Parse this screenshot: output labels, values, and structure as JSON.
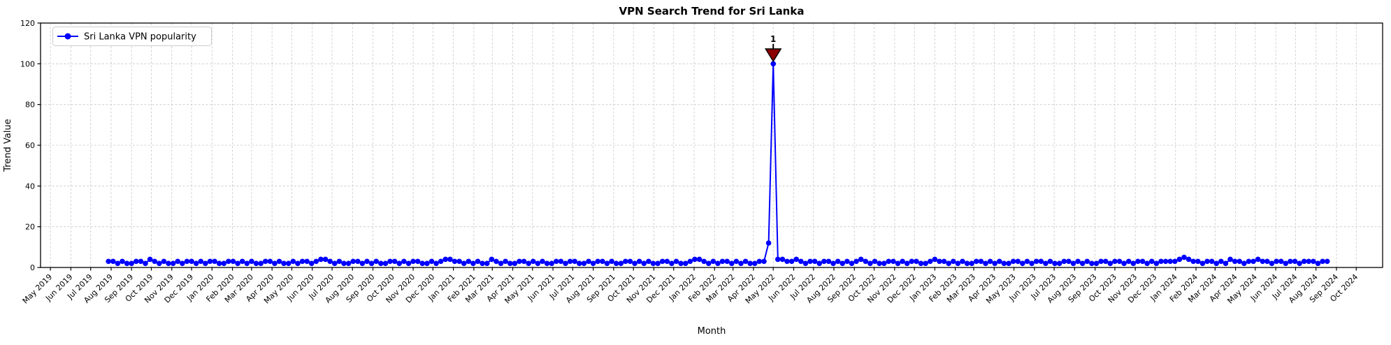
{
  "chart_data": {
    "type": "line",
    "title": "VPN Search Trend for Sri Lanka",
    "xlabel": "Month",
    "ylabel": "Trend Value",
    "ylim": [
      0,
      120
    ],
    "yticks": [
      0,
      20,
      40,
      60,
      80,
      100,
      120
    ],
    "grid": true,
    "grid_style": "dashed",
    "grid_color": "#c8c8c8",
    "line_color": "#0000ff",
    "marker": "circle",
    "legend": {
      "label": "Sri Lanka VPN popularity",
      "position": "upper left"
    },
    "annotation": {
      "text": "1",
      "color": "#8b0000",
      "date": "2022-05-01",
      "value": 100
    },
    "xlim": [
      "2019-04-16",
      "2024-11-10"
    ],
    "xtick_labels": [
      "May 2019",
      "Jun 2019",
      "Jul 2019",
      "Aug 2019",
      "Sep 2019",
      "Oct 2019",
      "Nov 2019",
      "Dec 2019",
      "Jan 2020",
      "Feb 2020",
      "Mar 2020",
      "Apr 2020",
      "May 2020",
      "Jun 2020",
      "Jul 2020",
      "Aug 2020",
      "Sep 2020",
      "Oct 2020",
      "Nov 2020",
      "Dec 2020",
      "Jan 2021",
      "Feb 2021",
      "Mar 2021",
      "Apr 2021",
      "May 2021",
      "Jun 2021",
      "Jul 2021",
      "Aug 2021",
      "Sep 2021",
      "Oct 2021",
      "Nov 2021",
      "Dec 2021",
      "Jan 2022",
      "Feb 2022",
      "Mar 2022",
      "Apr 2022",
      "May 2022",
      "Jun 2022",
      "Jul 2022",
      "Aug 2022",
      "Sep 2022",
      "Oct 2022",
      "Nov 2022",
      "Dec 2022",
      "Jan 2023",
      "Feb 2023",
      "Mar 2023",
      "Apr 2023",
      "May 2023",
      "Jun 2023",
      "Jul 2023",
      "Aug 2023",
      "Sep 2023",
      "Oct 2023",
      "Nov 2023",
      "Dec 2023",
      "Jan 2024",
      "Feb 2024",
      "Mar 2024",
      "Apr 2024",
      "May 2024",
      "Jun 2024",
      "Jul 2024",
      "Aug 2024",
      "Sep 2024",
      "Oct 2024"
    ],
    "series": [
      {
        "name": "Sri Lanka VPN popularity",
        "start_date": "2019-07-28",
        "interval_days": 7,
        "peak": {
          "date": "2022-05-01",
          "value": 100
        },
        "values": [
          3,
          3,
          2,
          3,
          2,
          2,
          3,
          3,
          2,
          4,
          3,
          2,
          3,
          2,
          2,
          3,
          2,
          3,
          3,
          2,
          3,
          2,
          3,
          3,
          2,
          2,
          3,
          3,
          2,
          3,
          2,
          3,
          2,
          2,
          3,
          3,
          2,
          3,
          2,
          2,
          3,
          2,
          3,
          3,
          2,
          3,
          4,
          4,
          3,
          2,
          3,
          2,
          2,
          3,
          3,
          2,
          3,
          2,
          3,
          2,
          2,
          3,
          3,
          2,
          3,
          2,
          3,
          3,
          2,
          2,
          3,
          2,
          3,
          4,
          4,
          3,
          3,
          2,
          3,
          2,
          3,
          2,
          2,
          4,
          3,
          2,
          3,
          2,
          2,
          3,
          3,
          2,
          3,
          2,
          3,
          2,
          2,
          3,
          3,
          2,
          3,
          3,
          2,
          2,
          3,
          2,
          3,
          3,
          2,
          3,
          2,
          2,
          3,
          3,
          2,
          3,
          2,
          3,
          2,
          2,
          3,
          3,
          2,
          3,
          2,
          2,
          3,
          4,
          4,
          3,
          2,
          3,
          2,
          3,
          3,
          2,
          3,
          2,
          3,
          2,
          2,
          3,
          3,
          12,
          100,
          4,
          4,
          3,
          3,
          4,
          3,
          2,
          3,
          3,
          2,
          3,
          3,
          2,
          3,
          2,
          3,
          2,
          3,
          4,
          3,
          2,
          3,
          2,
          2,
          3,
          3,
          2,
          3,
          2,
          3,
          3,
          2,
          2,
          3,
          4,
          3,
          3,
          2,
          3,
          2,
          3,
          2,
          2,
          3,
          3,
          2,
          3,
          2,
          3,
          2,
          2,
          3,
          3,
          2,
          3,
          2,
          3,
          3,
          2,
          3,
          2,
          2,
          3,
          3,
          2,
          3,
          2,
          3,
          2,
          2,
          3,
          3,
          2,
          3,
          3,
          2,
          3,
          2,
          3,
          3,
          2,
          3,
          2,
          3,
          3,
          3,
          3,
          4,
          5,
          4,
          3,
          3,
          2,
          3,
          3,
          2,
          3,
          2,
          4,
          3,
          3,
          2,
          3,
          3,
          4,
          3,
          3,
          2,
          3,
          3,
          2,
          3,
          3,
          2,
          3,
          3,
          3,
          2,
          3,
          3
        ]
      }
    ]
  }
}
